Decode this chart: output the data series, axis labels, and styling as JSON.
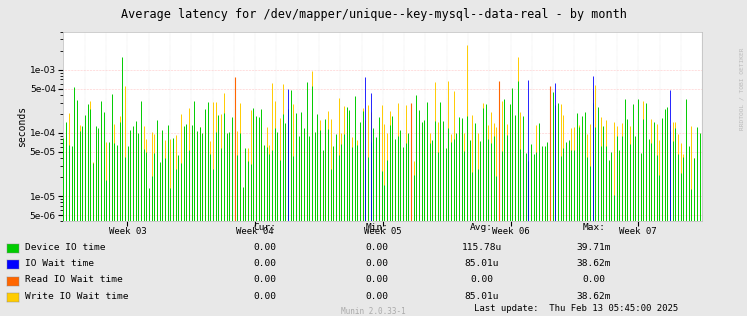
{
  "title": "Average latency for /dev/mapper/unique--key-mysql--data-real - by month",
  "ylabel": "seconds",
  "watermark": "RRDTOOL / TOBI OETIKER",
  "munin_version": "Munin 2.0.33-1",
  "x_labels": [
    "Week 03",
    "Week 04",
    "Week 05",
    "Week 06",
    "Week 07"
  ],
  "ylim_min": 4e-06,
  "ylim_max": 0.004,
  "background_color": "#e8e8e8",
  "plot_bg_color": "#ffffff",
  "grid_color_h": "#ff9999",
  "grid_color_v": "#cccccc",
  "colors": {
    "device_io": "#00cc00",
    "io_wait": "#0000ff",
    "read_io_wait": "#ff6600",
    "write_io_wait": "#ffcc00"
  },
  "legend_items": [
    {
      "label": "Device IO time",
      "color": "#00cc00"
    },
    {
      "label": "IO Wait time",
      "color": "#0000ff"
    },
    {
      "label": "Read IO Wait time",
      "color": "#ff6600"
    },
    {
      "label": "Write IO Wait time",
      "color": "#ffcc00"
    }
  ],
  "table_headers": [
    "Cur:",
    "Min:",
    "Avg:",
    "Max:"
  ],
  "table_data": [
    [
      "0.00",
      "0.00",
      "115.78u",
      "39.71m"
    ],
    [
      "0.00",
      "0.00",
      "85.01u",
      "38.62m"
    ],
    [
      "0.00",
      "0.00",
      "0.00",
      "0.00"
    ],
    [
      "0.00",
      "0.00",
      "85.01u",
      "38.62m"
    ]
  ],
  "last_update": "Last update:  Thu Feb 13 05:45:00 2025"
}
